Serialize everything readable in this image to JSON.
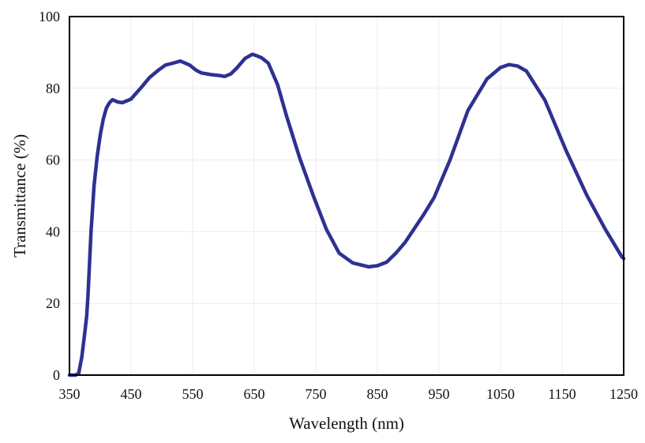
{
  "chart_data": {
    "type": "line",
    "title": "",
    "xlabel": "Wavelength (nm)",
    "ylabel": "Transmittance (%)",
    "xlim": [
      350,
      1250
    ],
    "ylim": [
      0,
      100
    ],
    "xticks": [
      350,
      450,
      550,
      650,
      750,
      850,
      950,
      1050,
      1150,
      1250
    ],
    "yticks": [
      0,
      20,
      40,
      60,
      80,
      100
    ],
    "grid": true,
    "legend": "none",
    "series": [
      {
        "color": "#2e3192",
        "x": [
          350,
          360,
          365,
          370,
          375,
          378,
          380,
          385,
          390,
          395,
          400,
          405,
          410,
          415,
          420,
          428,
          436,
          450,
          468,
          480,
          494,
          506,
          518,
          530,
          545,
          556,
          564,
          580,
          596,
          602,
          612,
          622,
          635,
          647,
          655,
          662,
          673,
          688,
          703,
          724,
          746,
          767,
          788,
          810,
          836,
          850,
          865,
          880,
          895,
          926,
          942,
          968,
          997,
          1028,
          1050,
          1064,
          1078,
          1092,
          1122,
          1156,
          1190,
          1220,
          1247,
          1250
        ],
        "y": [
          0,
          0,
          0.5,
          5,
          12,
          16.5,
          22,
          40,
          53,
          61,
          67,
          71.5,
          74.5,
          76,
          76.8,
          76.2,
          76,
          77,
          80.5,
          83,
          85,
          86.5,
          87,
          87.6,
          86.5,
          85,
          84.3,
          83.8,
          83.5,
          83.3,
          84,
          85.7,
          88.3,
          89.5,
          89,
          88.5,
          87,
          81,
          72,
          60.5,
          50,
          40.7,
          34,
          31.3,
          30.2,
          30.5,
          31.5,
          34,
          37,
          45,
          49.5,
          60,
          73.8,
          82.6,
          85.8,
          86.6,
          86.2,
          84.8,
          76.7,
          62.8,
          50.2,
          40.7,
          33,
          32.5
        ]
      }
    ]
  }
}
